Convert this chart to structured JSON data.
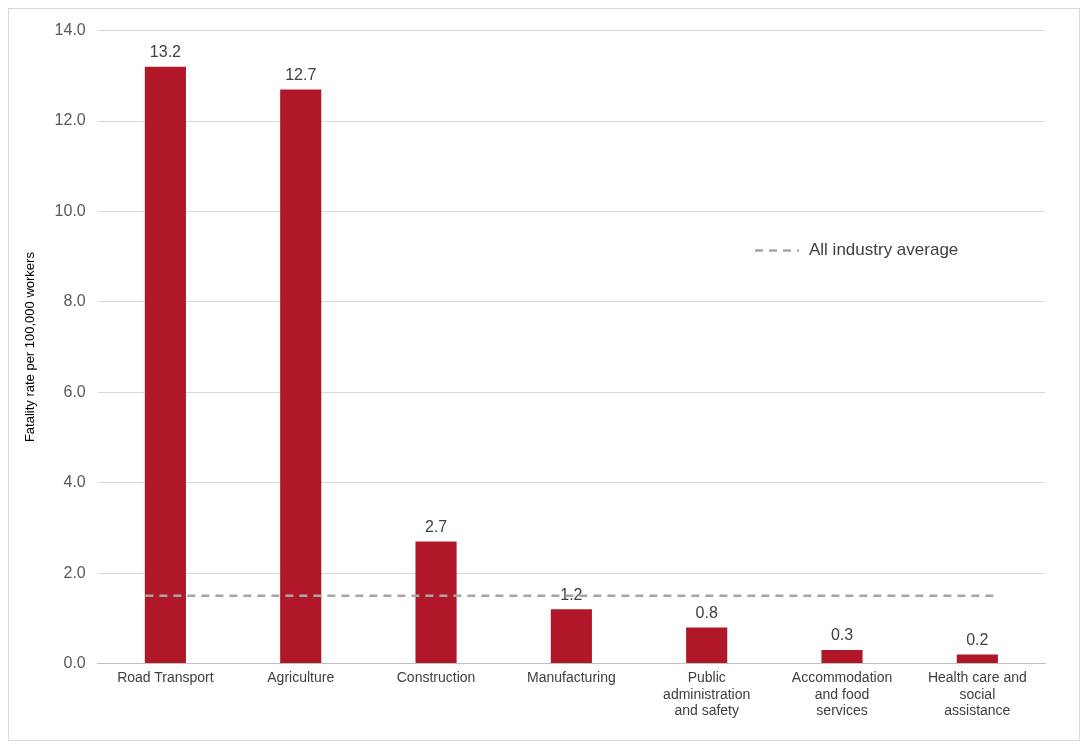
{
  "chart_data": {
    "type": "bar",
    "ylabel": "Fatality rate per 100,000 workers",
    "categories": [
      "Road Transport",
      "Agriculture",
      "Construction",
      "Manufacturing",
      "Public administration and safety",
      "Accommodation and food services",
      "Health care and social assistance"
    ],
    "values": [
      13.2,
      12.7,
      2.7,
      1.2,
      0.8,
      0.3,
      0.2
    ],
    "color": "#b0182a",
    "ylim": [
      0,
      14
    ],
    "yticks": [
      {
        "value": 0,
        "label": "0.0"
      },
      {
        "value": 2,
        "label": "2.0"
      },
      {
        "value": 4,
        "label": "4.0"
      },
      {
        "value": 6,
        "label": "6.0"
      },
      {
        "value": 8,
        "label": "8.0"
      },
      {
        "value": 10,
        "label": "10.0"
      },
      {
        "value": 12,
        "label": "12.0"
      },
      {
        "value": 14,
        "label": "14.0"
      }
    ],
    "grid": "y",
    "data_labels": true,
    "legend": "right",
    "ref_lines": [
      {
        "axis": "y",
        "value": 1.5,
        "label": "All industry average",
        "color": "#a6a6a6",
        "line_style": "dashed"
      }
    ]
  }
}
